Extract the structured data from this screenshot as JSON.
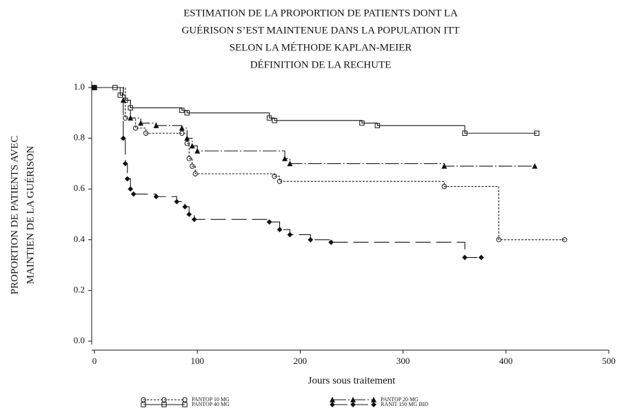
{
  "chart_data": {
    "type": "step",
    "title": [
      "ESTIMATION DE LA PROPORTION DE PATIENTS DONT LA",
      "GUÉRISON S’EST MAINTENUE DANS LA POPULATION ITT",
      "SELON LA MÉTHODE KAPLAN-MEIER",
      "DÉFINITION DE LA RECHUTE"
    ],
    "x_label": "Jours sous traitement",
    "y_label": [
      "PROPORTION DE PATIENTS AVEC",
      "MAINTIEN DE LA GUÉRISON"
    ],
    "xlim": [
      0,
      500
    ],
    "xticks": [
      0,
      100,
      200,
      300,
      400,
      500
    ],
    "ylim": [
      0,
      1
    ],
    "yticks": [
      {
        "value": 0,
        "label": "0.0"
      },
      0.2,
      0.4,
      0.6,
      0.8,
      {
        "value": 1,
        "label": "1.0"
      }
    ],
    "series": [
      {
        "name": "PANTOP 10 MG",
        "color": "#111111",
        "marker": "circle",
        "dash": "3,2",
        "x": [
          0,
          30,
          40,
          50,
          85,
          90,
          92,
          95,
          98,
          175,
          180,
          340,
          393,
          457
        ],
        "values": [
          1.0,
          0.88,
          0.84,
          0.82,
          0.82,
          0.78,
          0.72,
          0.69,
          0.66,
          0.65,
          0.63,
          0.61,
          0.4,
          0.4
        ]
      },
      {
        "name": "PANTOP 40 MG",
        "color": "#111111",
        "marker": "square",
        "dash": "none",
        "x": [
          0,
          20,
          25,
          30,
          35,
          85,
          90,
          170,
          175,
          260,
          275,
          360,
          430
        ],
        "values": [
          1.0,
          1.0,
          0.97,
          0.95,
          0.92,
          0.91,
          0.9,
          0.88,
          0.87,
          0.86,
          0.85,
          0.82,
          0.82
        ]
      },
      {
        "name": "PANTOP 20 MG",
        "color": "#111111",
        "marker": "triangle",
        "dash": "20,3,2,3",
        "x": [
          0,
          28,
          35,
          45,
          60,
          85,
          90,
          95,
          100,
          185,
          190,
          340,
          428
        ],
        "values": [
          1.0,
          0.95,
          0.88,
          0.86,
          0.85,
          0.84,
          0.8,
          0.77,
          0.75,
          0.72,
          0.7,
          0.69,
          0.69
        ]
      },
      {
        "name": "RANIT 150 MG BID",
        "color": "#111111",
        "marker": "diamond",
        "dash": "22,8",
        "x": [
          0,
          28,
          30,
          32,
          35,
          38,
          60,
          80,
          88,
          92,
          97,
          170,
          180,
          190,
          210,
          230,
          360,
          376
        ],
        "values": [
          1.0,
          0.8,
          0.7,
          0.64,
          0.6,
          0.58,
          0.57,
          0.55,
          0.53,
          0.5,
          0.48,
          0.47,
          0.44,
          0.42,
          0.4,
          0.39,
          0.33,
          0.33
        ]
      }
    ]
  }
}
